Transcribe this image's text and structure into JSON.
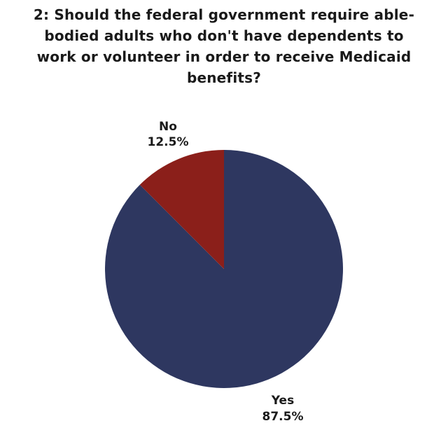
{
  "chart_data": {
    "type": "pie",
    "title": "2: Should the federal government require able-bodied adults who don't have dependents to work or volunteer in order to receive Medicaid benefits?",
    "categories": [
      "Yes",
      "No"
    ],
    "values": [
      87.5,
      12.5
    ],
    "value_labels": [
      "87.5%",
      "12.5%"
    ],
    "colors": [
      "#2e3760",
      "#8b1f1a"
    ],
    "start_angle_deg": 0,
    "direction": "clockwise",
    "legend": "none"
  }
}
